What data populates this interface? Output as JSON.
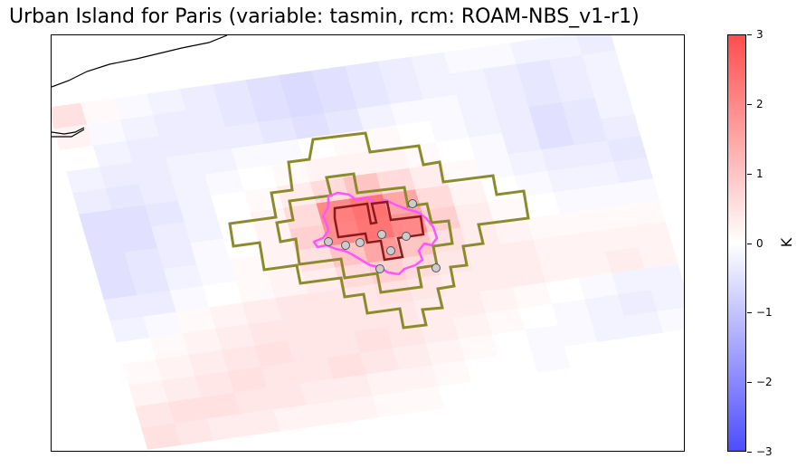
{
  "title": "Urban Island for Paris (variable: tasmin, rcm: ROAM-NBS_v1-r1)",
  "colorbar": {
    "unit": "K",
    "ticks": [
      "3",
      "2",
      "1",
      "0",
      "−1",
      "−2",
      "−3"
    ],
    "range": [
      -3,
      3
    ],
    "colormap": "bwr",
    "color_high": "#ff4d4d",
    "color_mid": "#ffffff",
    "color_low": "#4d4dff"
  },
  "map": {
    "urban_outline_color": "#8b1a1a",
    "rural_ring_color": "#8b8b2e",
    "city_boundary_color": "#ff55ff",
    "station_marker_color": "#cccccc",
    "coastline_color": "#000000"
  },
  "chart_data": {
    "type": "heatmap",
    "title": "Urban Island for Paris (variable: tasmin, rcm: ROAM-NBS_v1-r1)",
    "colorbar_label": "K",
    "vmin": -3,
    "vmax": 3,
    "grid_rows": 16,
    "grid_cols": 17,
    "values": [
      [
        0.5,
        0.1,
        -0.1,
        -0.2,
        -0.3,
        -0.4,
        -0.5,
        -0.6,
        -0.5,
        -0.4,
        -0.3,
        -0.2,
        -0.1,
        -0.1,
        -0.2,
        -0.2,
        -0.3
      ],
      [
        0.2,
        -0.1,
        -0.2,
        -0.3,
        -0.3,
        -0.4,
        -0.5,
        -0.6,
        -0.5,
        -0.4,
        -0.3,
        -0.2,
        -0.2,
        -0.3,
        -0.4,
        -0.3,
        -0.2
      ],
      [
        0.0,
        -0.2,
        -0.3,
        -0.3,
        -0.3,
        -0.3,
        -0.4,
        -0.5,
        -0.4,
        -0.2,
        -0.1,
        -0.1,
        -0.2,
        -0.3,
        -0.4,
        -0.3,
        -0.2
      ],
      [
        -0.2,
        -0.3,
        -0.3,
        -0.2,
        -0.2,
        -0.1,
        -0.1,
        0.0,
        0.1,
        0.1,
        0.0,
        -0.1,
        -0.2,
        -0.3,
        -0.5,
        -0.4,
        -0.2
      ],
      [
        -0.3,
        -0.4,
        -0.3,
        -0.2,
        -0.1,
        0.0,
        0.1,
        0.2,
        0.2,
        0.2,
        0.1,
        0.0,
        -0.1,
        -0.3,
        -0.5,
        -0.4,
        -0.3
      ],
      [
        -0.5,
        -0.5,
        -0.4,
        -0.2,
        0.0,
        0.1,
        0.3,
        0.6,
        1.0,
        0.6,
        0.3,
        0.1,
        -0.1,
        -0.2,
        -0.3,
        -0.3,
        -0.4
      ],
      [
        -0.5,
        -0.5,
        -0.3,
        -0.2,
        0.0,
        0.2,
        0.6,
        2.0,
        2.3,
        1.5,
        0.6,
        0.2,
        0.0,
        -0.1,
        -0.2,
        -0.2,
        -0.3
      ],
      [
        -0.5,
        -0.4,
        -0.3,
        -0.1,
        0.0,
        0.2,
        0.8,
        1.9,
        2.2,
        1.8,
        0.8,
        0.3,
        0.1,
        0.0,
        -0.1,
        -0.1,
        -0.1
      ],
      [
        -0.5,
        -0.4,
        -0.2,
        -0.1,
        0.1,
        0.2,
        0.5,
        1.0,
        1.5,
        1.0,
        0.5,
        0.3,
        0.2,
        0.1,
        0.1,
        0.1,
        0.1
      ],
      [
        -0.3,
        -0.3,
        -0.1,
        0.0,
        0.1,
        0.2,
        0.3,
        0.6,
        0.8,
        0.6,
        0.4,
        0.3,
        0.3,
        0.2,
        0.2,
        0.2,
        0.2
      ],
      [
        -0.2,
        -0.1,
        0.1,
        0.2,
        0.3,
        0.4,
        0.4,
        0.4,
        0.5,
        0.4,
        0.3,
        0.3,
        0.3,
        0.2,
        0.2,
        0.3,
        0.2
      ],
      [
        0.0,
        0.1,
        0.2,
        0.3,
        0.4,
        0.4,
        0.4,
        0.4,
        0.4,
        0.3,
        0.3,
        0.2,
        0.1,
        0.0,
        -0.1,
        -0.2,
        -0.2
      ],
      [
        0.1,
        0.2,
        0.3,
        0.4,
        0.5,
        0.4,
        0.4,
        0.5,
        0.4,
        0.3,
        0.2,
        0.1,
        0.0,
        -0.1,
        -0.2,
        -0.3,
        -0.2
      ],
      [
        0.2,
        0.3,
        0.4,
        0.5,
        0.4,
        0.4,
        0.5,
        0.4,
        0.3,
        0.2,
        0.1,
        0.0,
        -0.1,
        -0.1,
        -0.2,
        -0.2,
        -0.1
      ],
      [
        0.4,
        0.5,
        0.5,
        0.4,
        0.4,
        0.3,
        0.3,
        0.2,
        0.2,
        0.1,
        0.0,
        0.0,
        -0.1,
        0.0,
        0.0,
        0.0,
        0.0
      ],
      [
        0.5,
        0.4,
        0.3,
        0.3,
        0.2,
        0.2,
        0.2,
        0.1,
        0.1,
        0.0,
        0.0,
        0.0,
        0.0,
        0.0,
        0.0,
        0.0,
        0.0
      ]
    ]
  }
}
